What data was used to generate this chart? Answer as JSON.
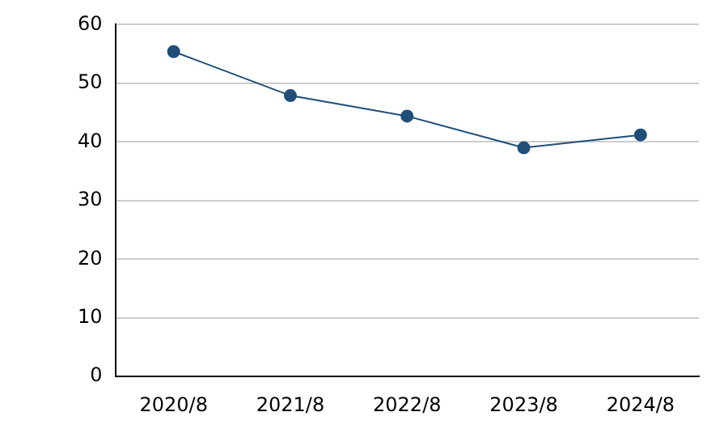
{
  "chart_data": {
    "type": "line",
    "categories": [
      "2020/8",
      "2021/8",
      "2022/8",
      "2023/8",
      "2024/8"
    ],
    "series": [
      {
        "color": "#1f4e79",
        "values": [
          55.4,
          47.9,
          44.4,
          39.0,
          41.2
        ]
      }
    ],
    "ylim": [
      0,
      60
    ],
    "yticks": [
      0,
      10,
      20,
      30,
      40,
      50,
      60
    ],
    "grid": "y",
    "legend": false,
    "marker": "circle",
    "line_style": "solid"
  }
}
